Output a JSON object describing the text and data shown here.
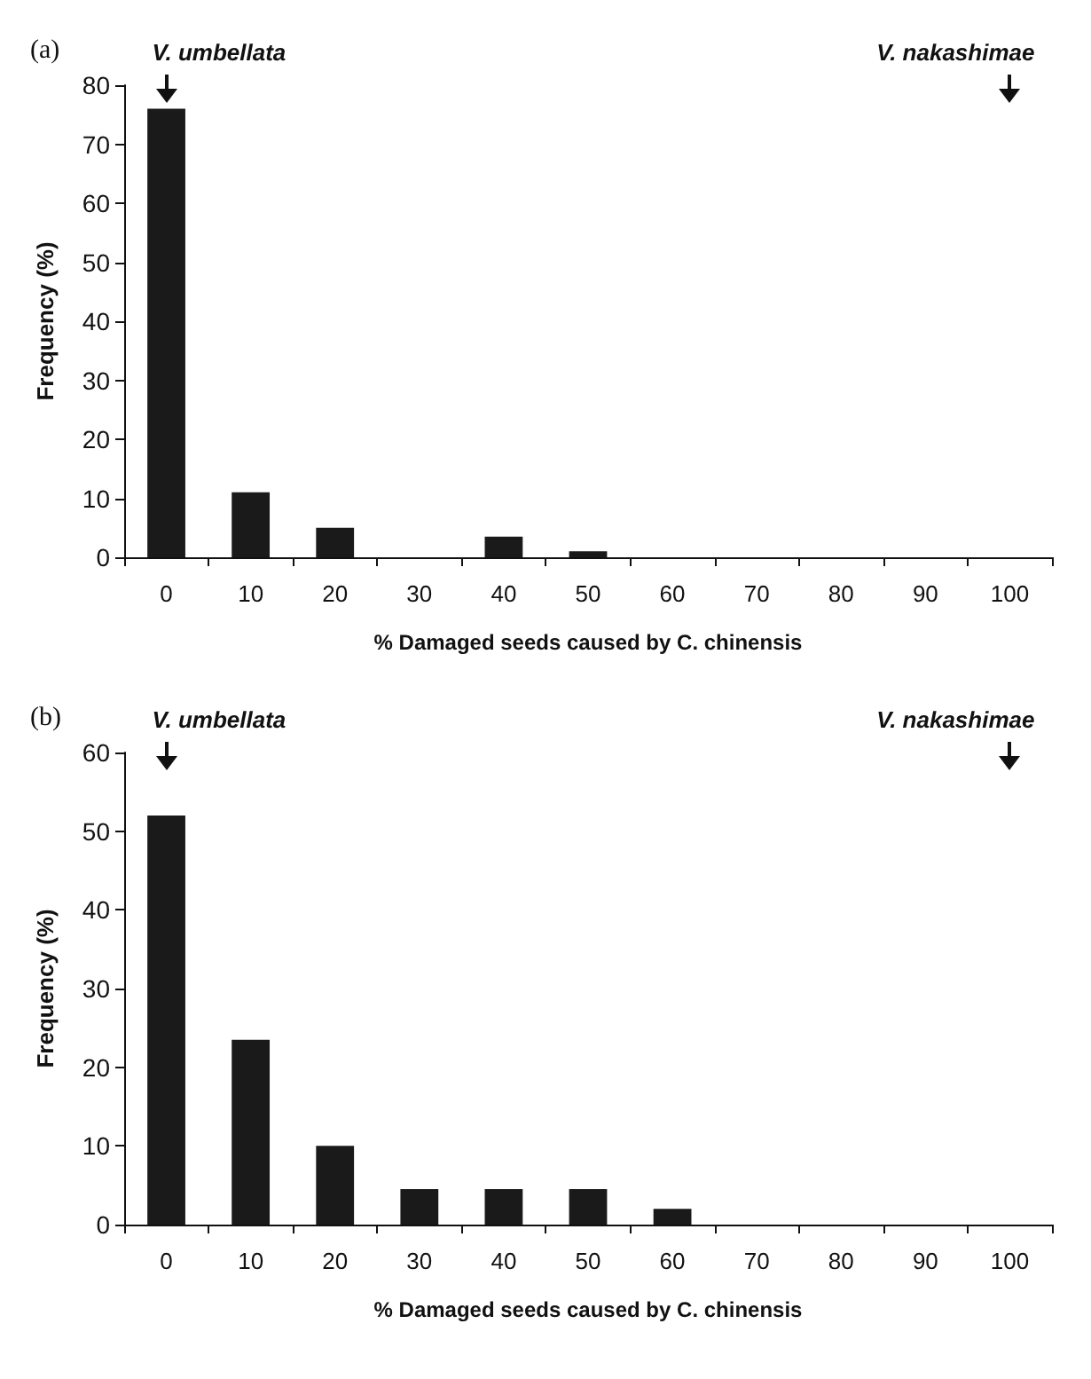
{
  "chart_data": [
    {
      "type": "bar",
      "title": "(a)",
      "xlabel": "% Damaged seeds caused by C. chinensis",
      "ylabel": "Frequency (%)",
      "categories": [
        "0",
        "10",
        "20",
        "30",
        "40",
        "50",
        "60",
        "70",
        "80",
        "90",
        "100"
      ],
      "values": [
        76,
        11,
        5,
        0,
        3.5,
        1,
        0,
        0,
        0,
        0,
        0
      ],
      "color": "#1a1a1a",
      "ylim": [
        0,
        80
      ],
      "yticks": [
        0,
        10,
        20,
        30,
        40,
        50,
        60,
        70,
        80
      ],
      "grid": false,
      "annotations": [
        "V. umbellata",
        "V. nakashimae"
      ]
    },
    {
      "type": "bar",
      "title": "(b)",
      "xlabel": "% Damaged seeds caused by C. chinensis",
      "ylabel": "Frequency (%)",
      "categories": [
        "0",
        "10",
        "20",
        "30",
        "40",
        "50",
        "60",
        "70",
        "80",
        "90",
        "100"
      ],
      "values": [
        52,
        23.5,
        10,
        4.5,
        4.5,
        4.5,
        2,
        0,
        0,
        0,
        0
      ],
      "color": "#1a1a1a",
      "ylim": [
        0,
        60
      ],
      "yticks": [
        0,
        10,
        20,
        30,
        40,
        50,
        60
      ],
      "grid": false,
      "annotations": [
        "V. umbellata",
        "V. nakashimae"
      ]
    }
  ]
}
